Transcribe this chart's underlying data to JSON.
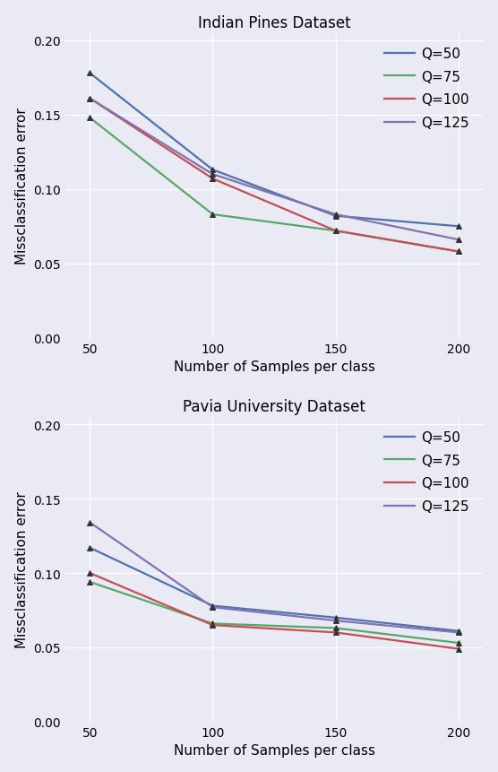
{
  "fig_width": 5.56,
  "fig_height": 8.62,
  "dpi": 100,
  "background_color": "#eaeaf4",
  "axes_facecolor": "#eaeaf4",
  "plot1": {
    "title": "Indian Pines Dataset",
    "xlabel": "Number of Samples per class",
    "ylabel": "Missclassification error",
    "xlim": [
      40,
      210
    ],
    "ylim": [
      0.0,
      0.205
    ],
    "xticks": [
      50,
      100,
      150,
      200
    ],
    "yticks": [
      0.0,
      0.05,
      0.1,
      0.15,
      0.2
    ],
    "series": [
      {
        "label": "Q=50",
        "color": "#4c72b0",
        "x": [
          50,
          100,
          150,
          200
        ],
        "y": [
          0.178,
          0.113,
          0.082,
          0.075
        ]
      },
      {
        "label": "Q=75",
        "color": "#55a868",
        "x": [
          50,
          100,
          150,
          200
        ],
        "y": [
          0.148,
          0.083,
          0.072,
          0.058
        ]
      },
      {
        "label": "Q=100",
        "color": "#c44e52",
        "x": [
          50,
          100,
          150,
          200
        ],
        "y": [
          0.161,
          0.107,
          0.072,
          0.058
        ]
      },
      {
        "label": "Q=125",
        "color": "#8172b2",
        "x": [
          50,
          100,
          150,
          200
        ],
        "y": [
          0.161,
          0.11,
          0.083,
          0.066
        ]
      }
    ]
  },
  "plot2": {
    "title": "Pavia University Dataset",
    "xlabel": "Number of Samples per class",
    "ylabel": "Missclassification error",
    "xlim": [
      40,
      210
    ],
    "ylim": [
      0.0,
      0.205
    ],
    "xticks": [
      50,
      100,
      150,
      200
    ],
    "yticks": [
      0.0,
      0.05,
      0.1,
      0.15,
      0.2
    ],
    "series": [
      {
        "label": "Q=50",
        "color": "#4c72b0",
        "x": [
          50,
          100,
          150,
          200
        ],
        "y": [
          0.117,
          0.078,
          0.07,
          0.061
        ]
      },
      {
        "label": "Q=75",
        "color": "#55a868",
        "x": [
          50,
          100,
          150,
          200
        ],
        "y": [
          0.094,
          0.066,
          0.063,
          0.053
        ]
      },
      {
        "label": "Q=100",
        "color": "#c44e52",
        "x": [
          50,
          100,
          150,
          200
        ],
        "y": [
          0.1,
          0.065,
          0.06,
          0.049
        ]
      },
      {
        "label": "Q=125",
        "color": "#8172b2",
        "x": [
          50,
          100,
          150,
          200
        ],
        "y": [
          0.134,
          0.077,
          0.068,
          0.06
        ]
      }
    ]
  },
  "legend": {
    "loc": "upper right",
    "fontsize": 11,
    "frameon": false,
    "handlelength": 2.2,
    "labelspacing": 0.7,
    "borderpad": 0.5
  },
  "line_width": 1.6,
  "marker": "^",
  "marker_size": 5,
  "marker_edgecolor": "#333333",
  "marker_facecolor": "#333333",
  "marker_edgewidth": 0.7,
  "grid": true,
  "grid_color": "white",
  "grid_linewidth": 0.9,
  "title_fontsize": 12,
  "label_fontsize": 11,
  "tick_fontsize": 10
}
